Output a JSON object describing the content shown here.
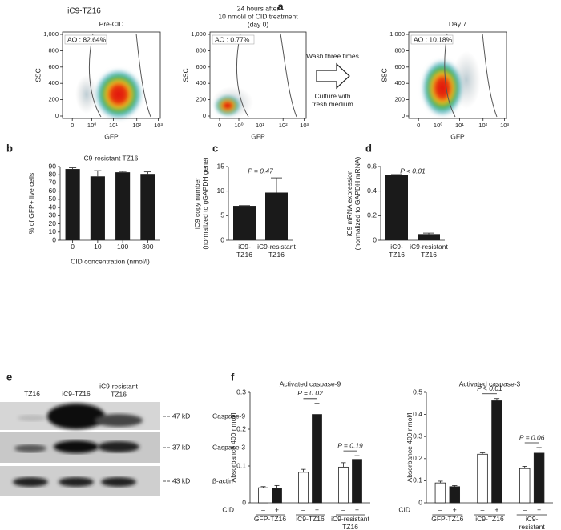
{
  "panel_labels": [
    "a",
    "b",
    "c",
    "d",
    "e",
    "f"
  ],
  "flow": {
    "title": "iC9-TZ16",
    "xlabel": "GFP",
    "ylabel": "SSC",
    "yticks": [
      "1,000",
      "800",
      "600",
      "400",
      "200",
      "0"
    ],
    "xticks": [
      "0",
      "10⁰",
      "10¹",
      "10²",
      "10³"
    ],
    "panels": [
      {
        "title": "Pre-CID",
        "gate": "AO : 82.64%"
      },
      {
        "title": "24 hours after\n10 nmol/l of CID treatment\n(day 0)",
        "gate": "AO : 0.77%"
      },
      {
        "title": "Day 7",
        "gate": "AO : 10.18%"
      }
    ],
    "arrow_top": "Wash three times",
    "arrow_bottom": "Culture with\nfresh medium"
  },
  "chart_data": [
    {
      "type": "bar",
      "title": "iC9-resistant TZ16",
      "ylabel": "% of GFP+ live cells",
      "xlabel": "CID concentration (nmol/l)",
      "categories": [
        "0",
        "10",
        "100",
        "300"
      ],
      "values": [
        87,
        78,
        83,
        81
      ],
      "errors": [
        1.5,
        7,
        1,
        2.5
      ],
      "color": "#1a1a1a",
      "ylim": [
        0,
        90
      ],
      "yticks": [
        0,
        10,
        20,
        30,
        40,
        50,
        60,
        70,
        80,
        90
      ]
    },
    {
      "type": "bar",
      "ylabel": "iC9 copy number\n(normalized to gGAPDH gene)",
      "annotation": "P = 0.47",
      "categories": [
        "iC9-\nTZ16",
        "iC9-resistant\nTZ16"
      ],
      "values": [
        7.0,
        9.7
      ],
      "errors": [
        0.05,
        3.0
      ],
      "color": "#1a1a1a",
      "ylim": [
        0,
        15
      ],
      "yticks": [
        0,
        5,
        10,
        15
      ]
    },
    {
      "type": "bar",
      "ylabel": "iC9 mRNA expression\n(normalized to GAPDH mRNA)",
      "annotation": "P < 0.01",
      "categories": [
        "iC9-\nTZ16",
        "iC9-resistant\nTZ16"
      ],
      "values": [
        0.53,
        0.05
      ],
      "errors": [
        0.005,
        0.008
      ],
      "color": "#1a1a1a",
      "ylim": [
        0,
        0.6
      ],
      "yticks": [
        0,
        0.2,
        0.4,
        0.6
      ]
    },
    {
      "type": "grouped_bar",
      "title": "Activated caspase-9",
      "ylabel": "Absorbance 400 nmol/l",
      "x_row_label": "CID",
      "categories": [
        "GFP-TZ16",
        "iC9-TZ16",
        "iC9-resistant\nTZ16"
      ],
      "p_values": [
        null,
        "P = 0.02",
        "P = 0.19"
      ],
      "series": [
        {
          "name": "–",
          "color": "#ffffff",
          "values": [
            0.041,
            0.083,
            0.097
          ],
          "errors": [
            0.003,
            0.008,
            0.012
          ]
        },
        {
          "name": "+",
          "color": "#1a1a1a",
          "values": [
            0.039,
            0.24,
            0.118
          ],
          "errors": [
            0.008,
            0.03,
            0.01
          ]
        }
      ],
      "ylim": [
        0,
        0.3
      ],
      "yticks": [
        0,
        0.1,
        0.2,
        0.3
      ]
    },
    {
      "type": "grouped_bar",
      "title": "Activated caspase-3",
      "ylabel": "Absorbance 400 nmol/l",
      "x_row_label": "CID",
      "categories": [
        "GFP-TZ16",
        "iC9-TZ16",
        "iC9-resistant\nTZ16"
      ],
      "p_values": [
        null,
        "P < 0.01",
        "P = 0.06"
      ],
      "series": [
        {
          "name": "–",
          "color": "#ffffff",
          "values": [
            0.09,
            0.22,
            0.155
          ],
          "errors": [
            0.008,
            0.007,
            0.01
          ]
        },
        {
          "name": "+",
          "color": "#1a1a1a",
          "values": [
            0.073,
            0.462,
            0.225
          ],
          "errors": [
            0.005,
            0.01,
            0.025
          ]
        }
      ],
      "ylim": [
        0,
        0.5
      ],
      "yticks": [
        0,
        0.1,
        0.2,
        0.3,
        0.4,
        0.5
      ]
    }
  ],
  "blot": {
    "lanes": [
      "TZ16",
      "iC9-TZ16",
      "iC9-resistant\nTZ16"
    ],
    "rows": [
      {
        "size": "47 kD",
        "protein": "Caspase-9"
      },
      {
        "size": "37 kD",
        "protein": "Caspase-3"
      },
      {
        "size": "43 kD",
        "protein": "β-actin"
      }
    ]
  }
}
